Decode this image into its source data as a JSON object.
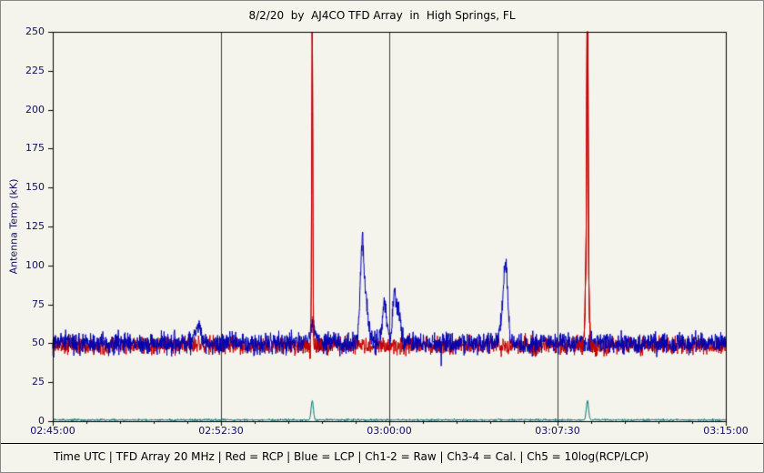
{
  "title": "8/2/20  by  AJ4CO TFD Array  in  High Springs, FL",
  "footer": "Time UTC | TFD Array 20 MHz | Red = RCP | Blue = LCP | Ch1-2 = Raw | Ch3-4 = Cal. | Ch5 = 10log(RCP/LCP)",
  "chart_data": {
    "type": "line",
    "title": "8/2/20  by  AJ4CO TFD Array  in  High Springs, FL",
    "xlabel": "Time UTC",
    "ylabel": "Antenna Temp (kK)",
    "x_range": [
      "02:45:00",
      "03:15:00"
    ],
    "x_ticks": [
      "02:45:00",
      "02:52:30",
      "03:00:00",
      "03:07:30",
      "03:15:00"
    ],
    "ylim": [
      0,
      250
    ],
    "y_ticks": [
      0,
      25,
      50,
      75,
      100,
      125,
      150,
      175,
      200,
      225,
      250
    ],
    "grid": "vertical lines at interior major x ticks",
    "legend_position": "none (legend given in footer text)",
    "background_color": "#f4f3ec",
    "series": [
      {
        "name": "RCP (Red)",
        "color": "#c00000",
        "baseline_kK": 48.5,
        "noise_kK": 4.5,
        "spikes": [
          {
            "time": "02:56:34",
            "peak_kK": 250,
            "width_s": 1.5
          },
          {
            "time": "03:08:49",
            "peak_kK": 120,
            "width_s": 4
          },
          {
            "time": "03:08:50",
            "peak_kK": 250,
            "width_s": 1.5
          }
        ]
      },
      {
        "name": "LCP (Blue)",
        "color": "#0000b0",
        "baseline_kK": 50,
        "noise_kK": 5.5,
        "spikes": [
          {
            "time": "02:51:30",
            "peak_kK": 63,
            "width_s": 6
          },
          {
            "time": "02:56:35",
            "peak_kK": 62,
            "width_s": 6
          },
          {
            "time": "02:58:47",
            "peak_kK": 107,
            "width_s": 5
          },
          {
            "time": "02:58:57",
            "peak_kK": 72,
            "width_s": 8
          },
          {
            "time": "02:59:47",
            "peak_kK": 73,
            "width_s": 7
          },
          {
            "time": "03:00:14",
            "peak_kK": 80,
            "width_s": 5
          },
          {
            "time": "03:00:26",
            "peak_kK": 70,
            "width_s": 5
          },
          {
            "time": "03:05:05",
            "peak_kK": 70,
            "width_s": 8
          },
          {
            "time": "03:05:12",
            "peak_kK": 87,
            "width_s": 5
          }
        ]
      },
      {
        "name": "Ch5 = 10log(RCP/LCP) (Teal)",
        "color": "#007878",
        "baseline_kK": 0.8,
        "noise_kK": 0.5,
        "spikes": [
          {
            "time": "02:56:34",
            "peak_kK": 13,
            "width_s": 3
          },
          {
            "time": "03:08:50",
            "peak_kK": 13,
            "width_s": 3
          }
        ]
      }
    ]
  }
}
